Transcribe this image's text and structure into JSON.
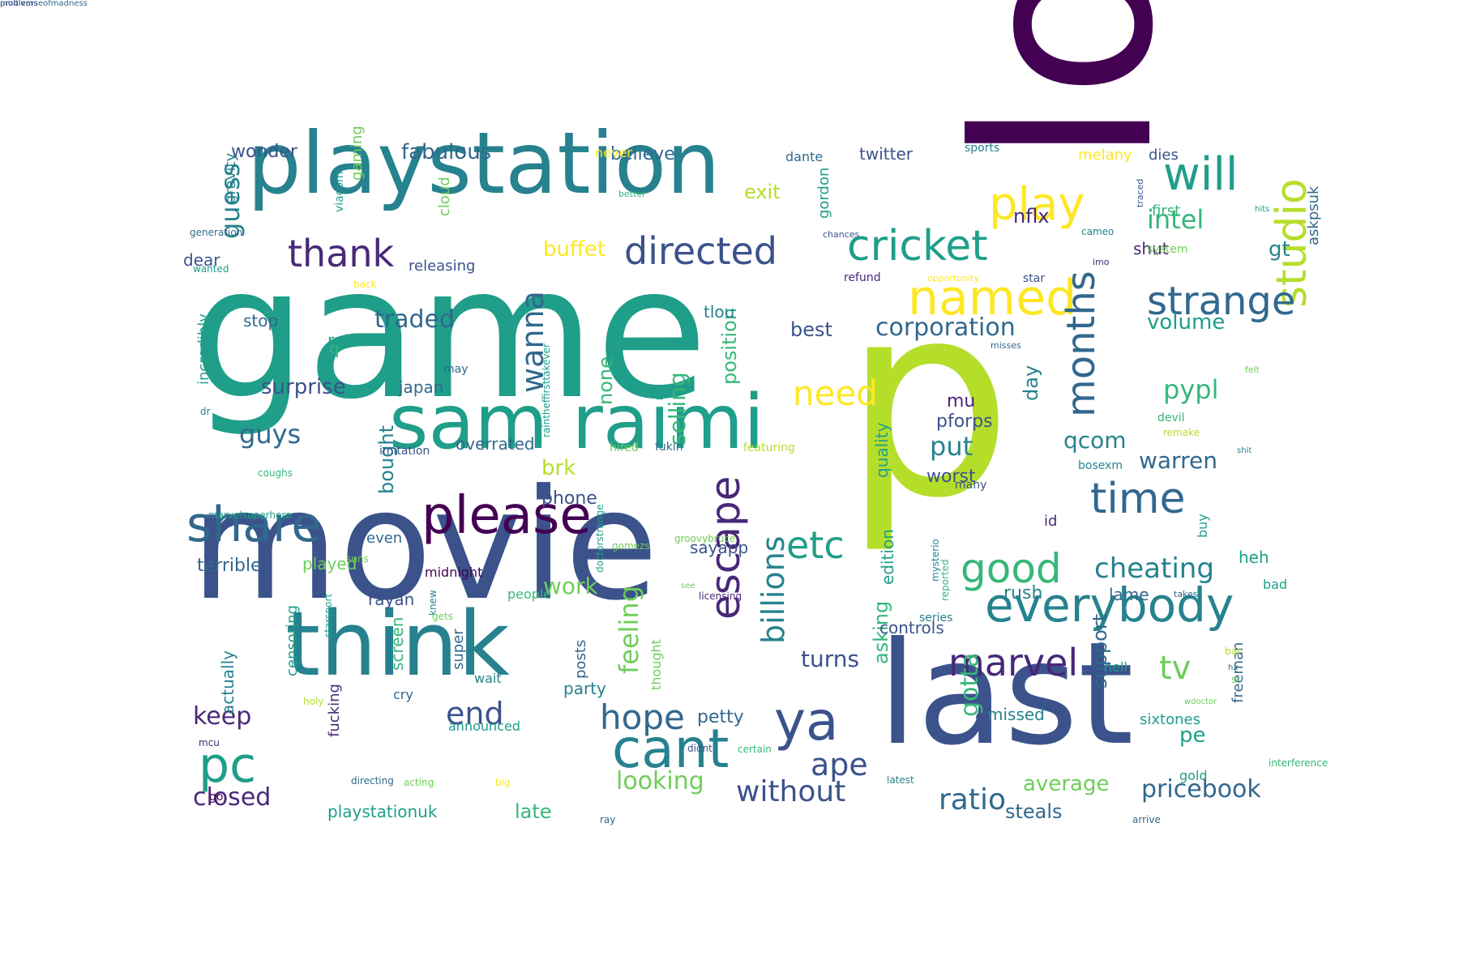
{
  "palette": {
    "p1": "#440154",
    "p2": "#482878",
    "p3": "#3b528b",
    "p4": "#31688e",
    "p5": "#26828e",
    "p6": "#1f9e89",
    "p7": "#35b779",
    "p8": "#6ece58",
    "p9": "#b5de2b",
    "p10": "#fde725"
  },
  "words": [
    {
      "text": "game",
      "c": "p6"
    },
    {
      "text": "movie",
      "c": "p3"
    },
    {
      "text": "p",
      "c": "p9"
    },
    {
      "text": "lot",
      "c": "p1"
    },
    {
      "text": "last",
      "c": "p3"
    },
    {
      "text": "playstation",
      "c": "p5"
    },
    {
      "text": "think",
      "c": "p5"
    },
    {
      "text": "sam raimi",
      "c": "p6"
    },
    {
      "text": "please",
      "c": "p1"
    },
    {
      "text": "studio",
      "c": "p9"
    },
    {
      "text": "share",
      "c": "p4"
    },
    {
      "text": "cricket",
      "c": "p6"
    },
    {
      "text": "everybody",
      "c": "p5"
    },
    {
      "text": "ya",
      "c": "p3"
    },
    {
      "text": "cant",
      "c": "p5"
    },
    {
      "text": "pc",
      "c": "p6"
    },
    {
      "text": "play",
      "c": "p10"
    },
    {
      "text": "will",
      "c": "p6"
    },
    {
      "text": "named",
      "c": "p10"
    },
    {
      "text": "directed",
      "c": "p3"
    },
    {
      "text": "time",
      "c": "p4"
    },
    {
      "text": "good",
      "c": "p7"
    },
    {
      "text": "etc",
      "c": "p6"
    },
    {
      "text": "escape",
      "c": "p2"
    },
    {
      "text": "months",
      "c": "p4"
    },
    {
      "text": "strange",
      "c": "p4"
    },
    {
      "text": "marvel",
      "c": "p2"
    },
    {
      "text": "thank",
      "c": "p2"
    },
    {
      "text": "need",
      "c": "p10"
    },
    {
      "text": "hope",
      "c": "p4"
    },
    {
      "text": "end",
      "c": "p3"
    },
    {
      "text": "ape",
      "c": "p3"
    },
    {
      "text": "wanna",
      "c": "p4"
    },
    {
      "text": "billions",
      "c": "p5"
    },
    {
      "text": "tv",
      "c": "p8"
    },
    {
      "text": "cheating",
      "c": "p5"
    },
    {
      "text": "without",
      "c": "p3"
    },
    {
      "text": "looking",
      "c": "p8"
    },
    {
      "text": "ratio",
      "c": "p4"
    },
    {
      "text": "pricebook",
      "c": "p4"
    },
    {
      "text": "closed",
      "c": "p2"
    },
    {
      "text": "corporation",
      "c": "p4"
    },
    {
      "text": "feeling",
      "c": "p8"
    },
    {
      "text": "put",
      "c": "p5"
    },
    {
      "text": "pypl",
      "c": "p7"
    },
    {
      "text": "guys",
      "c": "p4"
    },
    {
      "text": "guess",
      "c": "p5"
    },
    {
      "text": "intel",
      "c": "p7"
    },
    {
      "text": "work",
      "c": "p8"
    },
    {
      "text": "volume",
      "c": "p6"
    },
    {
      "text": "selling",
      "c": "p7"
    },
    {
      "text": "traded",
      "c": "p4"
    },
    {
      "text": "keep",
      "c": "p2"
    },
    {
      "text": "warren",
      "c": "p4"
    },
    {
      "text": "fabulous",
      "c": "p4"
    },
    {
      "text": "surprise",
      "c": "p3"
    },
    {
      "text": "buffet",
      "c": "p10"
    },
    {
      "text": "gotta",
      "c": "p7"
    },
    {
      "text": "turns",
      "c": "p3"
    },
    {
      "text": "qcom",
      "c": "p5"
    },
    {
      "text": "exit",
      "c": "p9"
    },
    {
      "text": "nflx",
      "c": "p2"
    },
    {
      "text": "none",
      "c": "p7"
    },
    {
      "text": "average",
      "c": "p8"
    },
    {
      "text": "bought",
      "c": "p5"
    },
    {
      "text": "position",
      "c": "p7"
    },
    {
      "text": "day",
      "c": "p5"
    },
    {
      "text": "asking",
      "c": "p7"
    },
    {
      "text": "support",
      "c": "p4"
    },
    {
      "text": "gt",
      "c": "p5"
    },
    {
      "text": "brk",
      "c": "p9"
    },
    {
      "text": "late",
      "c": "p7"
    },
    {
      "text": "steals",
      "c": "p4"
    },
    {
      "text": "pe",
      "c": "p6"
    },
    {
      "text": "best",
      "c": "p3"
    },
    {
      "text": "wonder",
      "c": "p3"
    },
    {
      "text": "worst",
      "c": "p3"
    },
    {
      "text": "mu",
      "c": "p2"
    },
    {
      "text": "pforps",
      "c": "p3"
    },
    {
      "text": "controls",
      "c": "p3"
    },
    {
      "text": "rush",
      "c": "p5"
    },
    {
      "text": "petty",
      "c": "p4"
    },
    {
      "text": "believe",
      "c": "p4"
    },
    {
      "text": "phone",
      "c": "p3"
    },
    {
      "text": "heh",
      "c": "p6"
    },
    {
      "text": "lame",
      "c": "p4"
    },
    {
      "text": "shut",
      "c": "p2"
    },
    {
      "text": "d",
      "c": "p3"
    },
    {
      "text": "missed",
      "c": "p5"
    },
    {
      "text": "played",
      "c": "p8"
    },
    {
      "text": "terrible",
      "c": "p4"
    },
    {
      "text": "edition",
      "c": "p6"
    },
    {
      "text": "quality",
      "c": "p6"
    },
    {
      "text": "party",
      "c": "p5"
    },
    {
      "text": "q",
      "c": "p7"
    },
    {
      "text": "rather",
      "c": "p6"
    },
    {
      "text": "stop",
      "c": "p4"
    },
    {
      "text": "dear",
      "c": "p3"
    },
    {
      "text": "gravity",
      "c": "p5"
    },
    {
      "text": "gaming",
      "c": "p8"
    },
    {
      "text": "overrated",
      "c": "p4"
    },
    {
      "text": "japan",
      "c": "p4"
    },
    {
      "text": "even",
      "c": "p4"
    },
    {
      "text": "rayan",
      "c": "p3"
    },
    {
      "text": "playstationuk",
      "c": "p6"
    },
    {
      "text": "actually",
      "c": "p5"
    },
    {
      "text": "censoring",
      "c": "p6"
    },
    {
      "text": "fucking",
      "c": "p2"
    },
    {
      "text": "screen",
      "c": "p7"
    },
    {
      "text": "super",
      "c": "p4"
    },
    {
      "text": "posts",
      "c": "p4"
    },
    {
      "text": "sayapp",
      "c": "p3"
    },
    {
      "text": "tlou",
      "c": "p5"
    },
    {
      "text": "incredibly",
      "c": "p6"
    },
    {
      "text": "releasing",
      "c": "p3"
    },
    {
      "text": "cloud",
      "c": "p8"
    },
    {
      "text": "gordon",
      "c": "p6"
    },
    {
      "text": "twitter",
      "c": "p3"
    },
    {
      "text": "never",
      "c": "p10"
    },
    {
      "text": "dante",
      "c": "p4"
    },
    {
      "text": "sports",
      "c": "p5"
    },
    {
      "text": "melany",
      "c": "p10"
    },
    {
      "text": "dies",
      "c": "p3"
    },
    {
      "text": "first",
      "c": "p7"
    },
    {
      "text": "askpsuk",
      "c": "p4"
    },
    {
      "text": "system",
      "c": "p8"
    },
    {
      "text": "refund",
      "c": "p2"
    },
    {
      "text": "star",
      "c": "p3"
    },
    {
      "text": "id",
      "c": "p2"
    },
    {
      "text": "buy",
      "c": "p6"
    },
    {
      "text": "sixtones",
      "c": "p6"
    },
    {
      "text": "freeman",
      "c": "p4"
    },
    {
      "text": "gold",
      "c": "p6"
    },
    {
      "text": "hell",
      "c": "p6"
    },
    {
      "text": "bad",
      "c": "p6"
    },
    {
      "text": "series",
      "c": "p5"
    },
    {
      "text": "people",
      "c": "p7"
    },
    {
      "text": "midnight",
      "c": "p1"
    },
    {
      "text": "wait",
      "c": "p5"
    },
    {
      "text": "cry",
      "c": "p4"
    },
    {
      "text": "announced",
      "c": "p6"
    },
    {
      "text": "thought",
      "c": "p8"
    },
    {
      "text": "hired",
      "c": "p8"
    },
    {
      "text": "fukin",
      "c": "p4"
    },
    {
      "text": "featuring",
      "c": "p9"
    },
    {
      "text": "imitation",
      "c": "p3"
    },
    {
      "text": "bosexm",
      "c": "p5"
    },
    {
      "text": "many",
      "c": "p3"
    },
    {
      "text": "devil",
      "c": "p7"
    },
    {
      "text": "viacom",
      "c": "p6"
    },
    {
      "text": "generation",
      "c": "p4"
    },
    {
      "text": "better",
      "c": "p7"
    },
    {
      "text": "chances",
      "c": "p3"
    },
    {
      "text": "opportunity",
      "c": "p10"
    },
    {
      "text": "back",
      "c": "p10"
    },
    {
      "text": "wanted",
      "c": "p6"
    },
    {
      "text": "raintheffirsttakever",
      "c": "p6"
    },
    {
      "text": "may",
      "c": "p4"
    },
    {
      "text": "misses",
      "c": "p4"
    },
    {
      "text": "felt",
      "c": "p8"
    },
    {
      "text": "imo",
      "c": "p2"
    },
    {
      "text": "cameo",
      "c": "p5"
    },
    {
      "text": "traced",
      "c": "p3"
    },
    {
      "text": "hits",
      "c": "p6"
    },
    {
      "text": "shit",
      "c": "p5"
    },
    {
      "text": "remake",
      "c": "p9"
    },
    {
      "text": "coughs",
      "c": "p7"
    },
    {
      "text": "dr",
      "c": "p5"
    },
    {
      "text": "marvelsuperhero",
      "c": "p6"
    },
    {
      "text": "groovybruce",
      "c": "p8"
    },
    {
      "text": "gomezs",
      "c": "p8"
    },
    {
      "text": "suns",
      "c": "p8"
    },
    {
      "text": "doctorstrange",
      "c": "p6"
    },
    {
      "text": "starsport",
      "c": "p6"
    },
    {
      "text": "knew",
      "c": "p5"
    },
    {
      "text": "gets",
      "c": "p8"
    },
    {
      "text": "see",
      "c": "p8"
    },
    {
      "text": "licensing",
      "c": "p2"
    },
    {
      "text": "takes",
      "c": "p4"
    },
    {
      "text": "mysterio",
      "c": "p5"
    },
    {
      "text": "reported",
      "c": "p7"
    },
    {
      "text": "bar",
      "c": "p9"
    },
    {
      "text": "hx",
      "c": "p4"
    },
    {
      "text": "st",
      "c": "p8"
    },
    {
      "text": "wdoctor",
      "c": "p8"
    },
    {
      "text": "holy",
      "c": "p9"
    },
    {
      "text": "mcu",
      "c": "p2"
    },
    {
      "text": "didnt",
      "c": "p3"
    },
    {
      "text": "certain",
      "c": "p7"
    },
    {
      "text": "directing",
      "c": "p4"
    },
    {
      "text": "acting",
      "c": "p8"
    },
    {
      "text": "big",
      "c": "p10"
    },
    {
      "text": "go",
      "c": "p1"
    },
    {
      "text": "ray",
      "c": "p4"
    },
    {
      "text": "latest",
      "c": "p5"
    },
    {
      "text": "interference",
      "c": "p7"
    },
    {
      "text": "arrive",
      "c": "p4"
    },
    {
      "text": "problems",
      "c": "p2"
    },
    {
      "text": "multiverseofmadness",
      "c": "p4"
    }
  ]
}
